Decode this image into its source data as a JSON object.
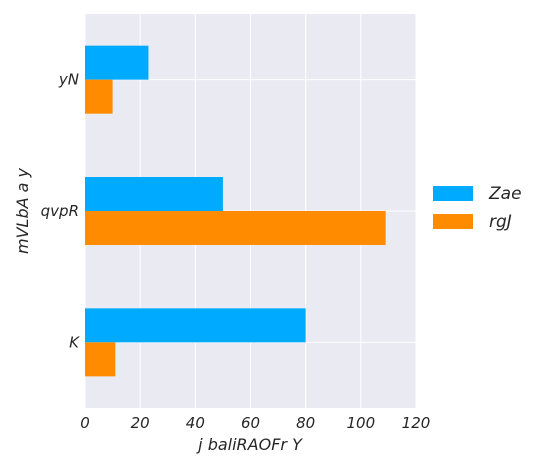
{
  "chart_data": {
    "type": "bar",
    "orientation": "horizontal",
    "categories": [
      "yN",
      "qvpR",
      "K"
    ],
    "series": [
      {
        "name": "Zae",
        "values": [
          23,
          50,
          80
        ],
        "color": "#00aaff"
      },
      {
        "name": "rgJ",
        "values": [
          10,
          109,
          11
        ],
        "color": "#ff8c00"
      }
    ],
    "xlabel": "j baliRAOFr Y",
    "ylabel": "mVLbA a  y",
    "xlim": [
      0,
      120
    ],
    "xticks": [
      "0",
      "20",
      "40",
      "60",
      "80",
      "100",
      "120"
    ],
    "grid": true,
    "legend_position": "right",
    "background_color": "#eaeaf2"
  }
}
